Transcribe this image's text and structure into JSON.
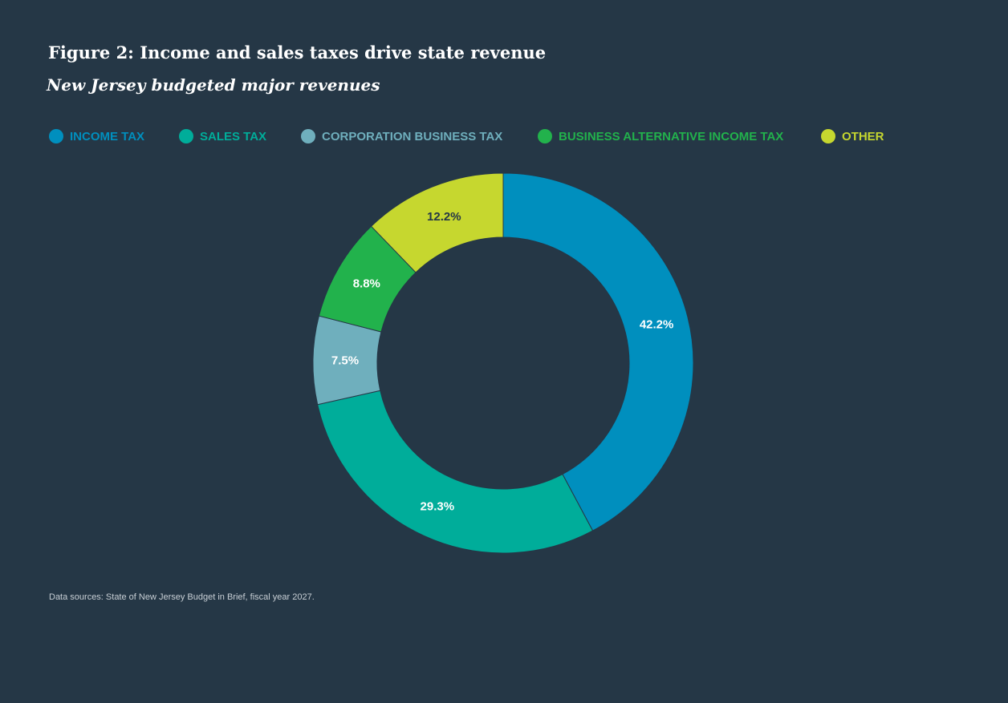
{
  "title": "Figure 2: Income and sales taxes drive state revenue",
  "subtitle": "New Jersey budgeted major revenues",
  "source": "Data sources: State of New Jersey Budget in Brief, fiscal year 2027.",
  "colors": {
    "background": "#253746",
    "slice_border": "#253746"
  },
  "chart_data": {
    "type": "pie",
    "variant": "donut",
    "legend_position": "top",
    "unit": "%",
    "categories": [
      "INCOME TAX",
      "SALES TAX",
      "CORPORATION BUSINESS TAX",
      "BUSINESS ALTERNATIVE INCOME TAX",
      "OTHER"
    ],
    "values": [
      42.2,
      29.3,
      7.5,
      8.8,
      12.2
    ],
    "labels": [
      "42.2%",
      "29.3%",
      "7.5%",
      "8.8%",
      "12.2%"
    ],
    "colors": [
      "#008fbe",
      "#00ad9a",
      "#6fafbd",
      "#22b24c",
      "#c6d72f"
    ],
    "label_colors": [
      "#ffffff",
      "#ffffff",
      "#ffffff",
      "#ffffff",
      "#253746"
    ]
  }
}
